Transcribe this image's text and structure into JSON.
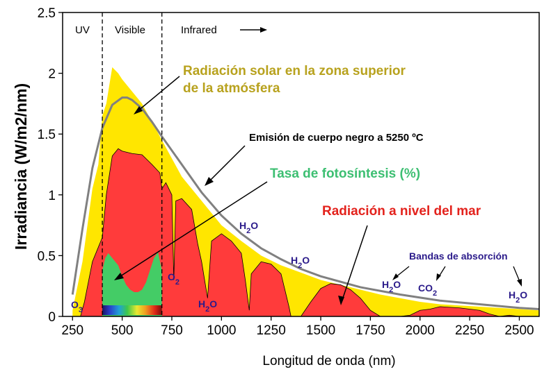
{
  "chart_data": {
    "type": "area",
    "xlabel": "Longitud de onda (nm)",
    "ylabel": "Irradiancia (W/m2/nm)",
    "xlim": [
      200,
      2600
    ],
    "ylim": [
      0,
      2.5
    ],
    "xticks": [
      "250",
      "500",
      "750",
      "1000",
      "1250",
      "1500",
      "1750",
      "2000",
      "2250",
      "2500"
    ],
    "yticks": [
      "0",
      "0.5",
      "1",
      "1.5",
      "2",
      "2.5"
    ],
    "regions": {
      "uv": "UV",
      "visible": "Visible",
      "infrared": "Infrared"
    },
    "region_bounds_nm": [
      400,
      700
    ],
    "series": [
      {
        "name": "Radiación solar en la zona superior de la atmósfera",
        "color": "#ffe600",
        "x": [
          250,
          300,
          350,
          380,
          400,
          420,
          450,
          480,
          500,
          550,
          600,
          650,
          700,
          750,
          800,
          900,
          1000,
          1100,
          1200,
          1300,
          1400,
          1500,
          1600,
          1700,
          1800,
          1900,
          2000,
          2100,
          2200,
          2300,
          2400,
          2500,
          2600
        ],
        "y": [
          0.05,
          0.45,
          1.05,
          1.25,
          1.65,
          1.75,
          2.05,
          2.0,
          1.95,
          1.85,
          1.75,
          1.6,
          1.45,
          1.3,
          1.15,
          0.95,
          0.75,
          0.62,
          0.5,
          0.42,
          0.36,
          0.3,
          0.26,
          0.22,
          0.18,
          0.15,
          0.12,
          0.1,
          0.09,
          0.08,
          0.07,
          0.06,
          0.05
        ]
      },
      {
        "name": "Radiación a nivel del mar",
        "color": "#ff3b3b",
        "x": [
          290,
          310,
          350,
          400,
          420,
          450,
          480,
          500,
          550,
          600,
          650,
          690,
          700,
          720,
          750,
          760,
          770,
          800,
          850,
          880,
          900,
          930,
          950,
          1000,
          1050,
          1100,
          1120,
          1140,
          1150,
          1200,
          1250,
          1300,
          1340,
          1350,
          1400,
          1450,
          1500,
          1550,
          1600,
          1650,
          1700,
          1750,
          1800,
          1850,
          1900,
          1950,
          2000,
          2050,
          2100,
          2200,
          2300,
          2350,
          2400,
          2450,
          2500,
          2550,
          2600
        ],
        "y": [
          0,
          0.12,
          0.45,
          0.65,
          1.0,
          1.32,
          1.38,
          1.36,
          1.34,
          1.33,
          1.25,
          1.18,
          1.05,
          1.1,
          1.0,
          0.3,
          0.95,
          0.97,
          0.88,
          0.6,
          0.45,
          0.15,
          0.62,
          0.68,
          0.62,
          0.52,
          0.3,
          0.05,
          0.35,
          0.45,
          0.43,
          0.35,
          0.08,
          0.0,
          0.0,
          0.12,
          0.23,
          0.27,
          0.26,
          0.22,
          0.15,
          0.05,
          0.0,
          0.0,
          0.0,
          0.01,
          0.05,
          0.06,
          0.08,
          0.07,
          0.05,
          0.02,
          0.0,
          0.01,
          0.0,
          0.0,
          0.0
        ]
      },
      {
        "name": "Emisión de cuerpo negro a 5250 ºC",
        "color": "#808080",
        "x": [
          250,
          300,
          350,
          400,
          450,
          500,
          525,
          550,
          600,
          650,
          700,
          800,
          900,
          1000,
          1100,
          1200,
          1300,
          1400,
          1500,
          1700,
          1900,
          2100,
          2300,
          2500,
          2600
        ],
        "y": [
          0.18,
          0.72,
          1.22,
          1.55,
          1.74,
          1.8,
          1.8,
          1.78,
          1.71,
          1.6,
          1.48,
          1.25,
          1.02,
          0.83,
          0.68,
          0.56,
          0.47,
          0.39,
          0.33,
          0.24,
          0.18,
          0.13,
          0.1,
          0.07,
          0.06
        ]
      },
      {
        "name": "Tasa de fotosíntesis (%)",
        "color": "#44cc66",
        "x": [
          400,
          415,
          430,
          450,
          480,
          500,
          520,
          540,
          560,
          580,
          600,
          620,
          640,
          660,
          680,
          700
        ],
        "y": [
          0.38,
          0.48,
          0.52,
          0.48,
          0.42,
          0.33,
          0.26,
          0.22,
          0.2,
          0.2,
          0.22,
          0.28,
          0.38,
          0.48,
          0.53,
          0.38
        ]
      }
    ],
    "spectrum_bar_nm": [
      400,
      700
    ],
    "annotations": {
      "top_of_atmosphere": [
        "Radiación solar en la zona superior",
        "de la atmósfera"
      ],
      "blackbody": "Emisión de cuerpo negro a 5250 ºC",
      "photosynthesis": "Tasa de fotosíntesis (%)",
      "sea_level": "Radiación a nivel del mar",
      "absorption_bands": "Bandas de absorción",
      "o3": "O3",
      "o2": "O2",
      "h2o": "H2O",
      "co2": "CO2"
    },
    "colors": {
      "top": "#ffe600",
      "sea": "#ff3b3b",
      "blackbody": "#808080",
      "photo": "#44cc66",
      "label_top": "#b8a21e",
      "label_photo": "#3dbf72",
      "label_sea": "#e3221c",
      "absorb": "#2a1a8a"
    }
  }
}
